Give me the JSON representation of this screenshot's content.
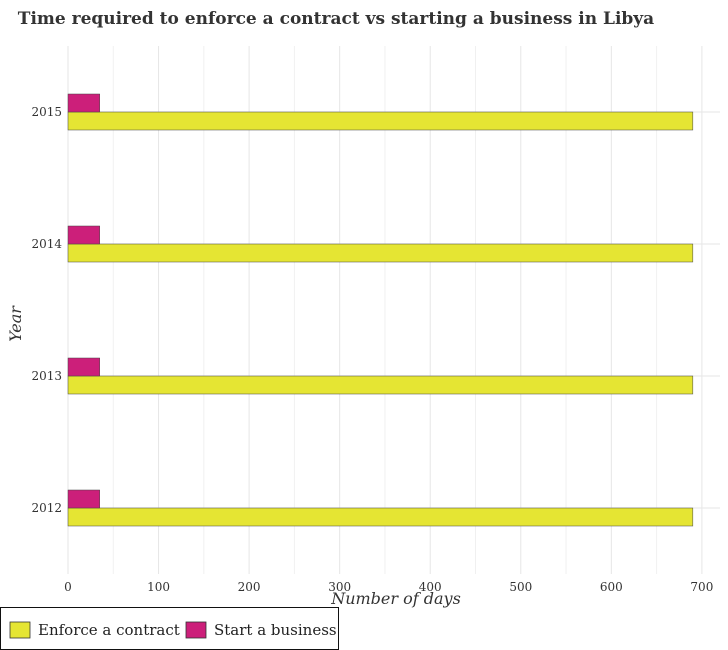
{
  "chart_data": {
    "type": "bar",
    "orientation": "horizontal",
    "title": "Time required to enforce a contract vs starting a business in Libya",
    "xlabel": "Number of days",
    "ylabel": "Year",
    "categories": [
      "2012",
      "2013",
      "2014",
      "2015"
    ],
    "xlim": [
      0,
      720
    ],
    "xticks": [
      0,
      100,
      200,
      300,
      400,
      500,
      600,
      700
    ],
    "grid": true,
    "legend_position": "bottom-left",
    "series": [
      {
        "name": "Enforce a contract",
        "color": "#e5e533",
        "values": [
          690,
          690,
          690,
          690
        ]
      },
      {
        "name": "Start a business",
        "color": "#cc1f7a",
        "values": [
          35,
          35,
          35,
          35
        ]
      }
    ]
  }
}
